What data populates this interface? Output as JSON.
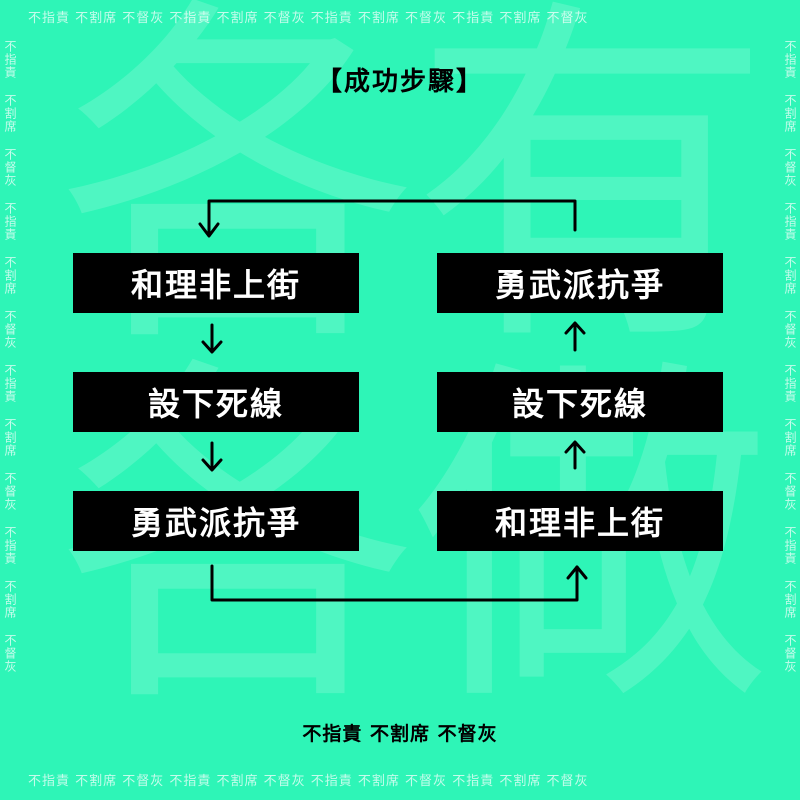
{
  "title": "【成功步驟】",
  "left_column": {
    "step_1": "和理非上街",
    "step_2": "設下死線",
    "step_3": "勇武派抗爭"
  },
  "right_column": {
    "step_1": "勇武派抗爭",
    "step_2": "設下死線",
    "step_3": "和理非上街"
  },
  "footer": "不指責 不割席 不督灰",
  "border_phrase": "不指責 不割席 不督灰 不指責 不割席 不督灰 不指責 不割席 不督灰 不指責 不割席 不督灰",
  "background_characters": [
    "各",
    "有",
    "各",
    "做"
  ],
  "colors": {
    "background": "#2EF5B7",
    "box": "#000000",
    "box_text": "#FFFFFF"
  }
}
